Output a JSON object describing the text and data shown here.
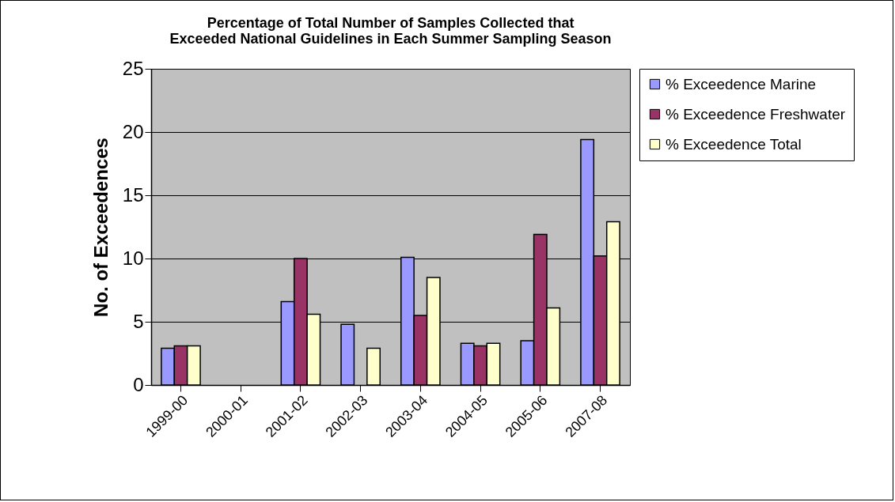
{
  "chart_data": {
    "type": "bar",
    "title": "Percentage of Total Number of Samples Collected that Exceeded National Guidelines in Each Summer Sampling Season",
    "ylabel": "No. of Exceedences",
    "categories": [
      "1999-00",
      "2000-01",
      "2001-02",
      "2002-03",
      "2003-04",
      "2004-05",
      "2005-06",
      "2007-08"
    ],
    "series": [
      {
        "name": "% Exceedence Marine",
        "color": "#9999ff",
        "values": [
          2.9,
          null,
          6.6,
          4.8,
          10.1,
          3.3,
          3.5,
          19.4
        ]
      },
      {
        "name": "% Exceedence Freshwater",
        "color": "#993366",
        "values": [
          3.1,
          null,
          10,
          null,
          5.5,
          3.1,
          11.9,
          10.2
        ]
      },
      {
        "name": "% Exceedence Total",
        "color": "#ffffcc",
        "values": [
          3.1,
          null,
          5.6,
          2.9,
          8.5,
          3.3,
          6.1,
          12.9
        ]
      }
    ],
    "ylim": [
      0,
      25
    ],
    "yticks": [
      0,
      5,
      10,
      15,
      20,
      25
    ],
    "grid": "y",
    "legend": "right"
  }
}
